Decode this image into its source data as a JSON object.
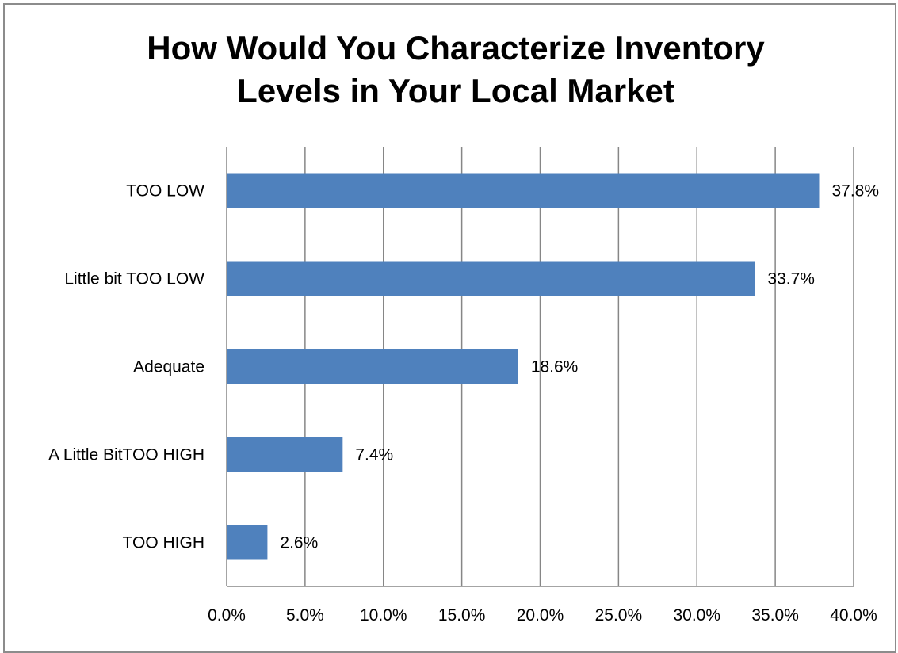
{
  "chart_data": {
    "type": "bar",
    "orientation": "horizontal",
    "title_lines": [
      "How Would You Characterize Inventory",
      "Levels in Your Local Market"
    ],
    "categories": [
      "TOO LOW",
      "Little bit TOO LOW",
      "Adequate",
      "A Little BitTOO HIGH",
      "TOO HIGH"
    ],
    "values": [
      37.8,
      33.7,
      18.6,
      7.4,
      2.6
    ],
    "data_labels": [
      "37.8%",
      "33.7%",
      "18.6%",
      "7.4%",
      "2.6%"
    ],
    "x_ticks": [
      "0.0%",
      "5.0%",
      "10.0%",
      "15.0%",
      "20.0%",
      "25.0%",
      "30.0%",
      "35.0%",
      "40.0%"
    ],
    "xlim": [
      0,
      40
    ],
    "grid": true,
    "legend": "none",
    "bar_color": "#4f81bd",
    "grid_color": "#868686"
  }
}
